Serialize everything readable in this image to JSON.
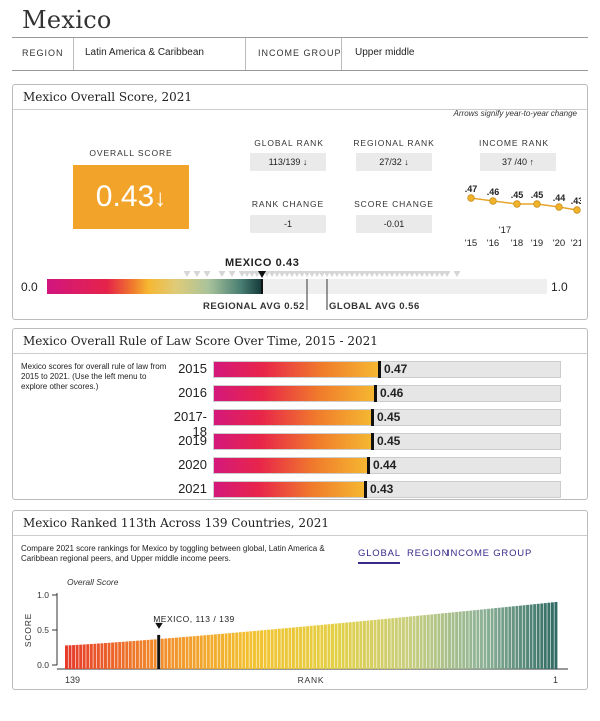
{
  "page": {
    "title": "Mexico"
  },
  "meta": {
    "region_label": "REGION",
    "region_value": "Latin America & Caribbean",
    "income_label": "INCOME GROUP",
    "income_value": "Upper middle"
  },
  "overall": {
    "title": "Mexico Overall Score, 2021",
    "note": "Arrows signify year-to-year change",
    "overall_label": "OVERALL SCORE",
    "overall_value": "0.43",
    "overall_arrow": "↓",
    "global_rank_label": "GLOBAL RANK",
    "global_rank_value": "113/139 ↓",
    "regional_rank_label": "REGIONAL RANK",
    "regional_rank_value": "27/32 ↓",
    "income_rank_label": "INCOME RANK",
    "income_rank_value": "37 /40 ↑",
    "rank_change_label": "RANK CHANGE",
    "rank_change_value": "-1",
    "score_change_label": "SCORE CHANGE",
    "score_change_value": "-0.01",
    "trend": {
      "points": [
        0.47,
        0.46,
        0.45,
        0.45,
        0.44,
        0.43
      ],
      "point_labels": [
        ".47",
        ".46",
        ".45",
        ".45",
        ".44",
        ".43"
      ],
      "years": [
        "'15",
        "'16",
        "'18",
        "'19",
        "'20",
        "'21"
      ],
      "extra_year": "'17"
    },
    "scale": {
      "min_label": "0.0",
      "max_label": "1.0",
      "country_label": "MEXICO 0.43",
      "country_score": 0.43,
      "regional_label": "REGIONAL AVG 0.52",
      "regional_score": 0.52,
      "global_label": "GLOBAL AVG 0.56",
      "global_score": 0.56,
      "peer_scores": [
        0.28,
        0.3,
        0.32,
        0.35,
        0.37,
        0.39,
        0.4,
        0.41,
        0.42,
        0.44,
        0.45,
        0.46,
        0.47,
        0.48,
        0.49,
        0.5,
        0.51,
        0.52,
        0.53,
        0.54,
        0.55,
        0.56,
        0.57,
        0.58,
        0.59,
        0.6,
        0.61,
        0.62,
        0.63,
        0.64,
        0.65,
        0.66,
        0.67,
        0.68,
        0.69,
        0.7,
        0.71,
        0.72,
        0.73,
        0.74,
        0.75,
        0.76,
        0.77,
        0.78,
        0.79,
        0.8,
        0.82
      ]
    }
  },
  "overtime": {
    "title": "Mexico Overall Rule of Law Score Over Time, 2015 - 2021",
    "description": "Mexico scores for overall rule of law from 2015 to 2021. (Use the left menu to explore other scores.)",
    "rows": [
      {
        "label": "2015",
        "value": 0.47,
        "text": "0.47"
      },
      {
        "label": "2016",
        "value": 0.46,
        "text": "0.46"
      },
      {
        "label": "2017-18",
        "value": 0.45,
        "text": "0.45"
      },
      {
        "label": "2019",
        "value": 0.45,
        "text": "0.45"
      },
      {
        "label": "2020",
        "value": 0.44,
        "text": "0.44"
      },
      {
        "label": "2021",
        "value": 0.43,
        "text": "0.43"
      }
    ]
  },
  "ranked": {
    "title": "Mexico Ranked 113th Across 139 Countries, 2021",
    "description": "Compare 2021 score rankings for Mexico by toggling between global, Latin America & Caribbean regional peers, and Upper middle income peers.",
    "tabs": [
      "GLOBAL",
      "REGION",
      "INCOME GROUP"
    ],
    "active_tab": "GLOBAL",
    "chart_label": "Overall Score",
    "y_title": "SCORE",
    "y_ticks": [
      "1.0",
      "0.5",
      "0.0"
    ],
    "x_left": "139",
    "x_right": "1",
    "x_title": "RANK",
    "highlight_label": "MEXICO, 113 / 139"
  },
  "chart_data": {
    "type": "bar",
    "title": "Overall Score",
    "xlabel": "RANK",
    "ylabel": "SCORE",
    "ylim": [
      0,
      1
    ],
    "x_range": [
      139,
      1
    ],
    "highlight": {
      "rank": 113,
      "value": 0.43,
      "label": "MEXICO, 113 / 139"
    },
    "min_value": 0.28,
    "max_value": 0.9,
    "count": 139
  }
}
